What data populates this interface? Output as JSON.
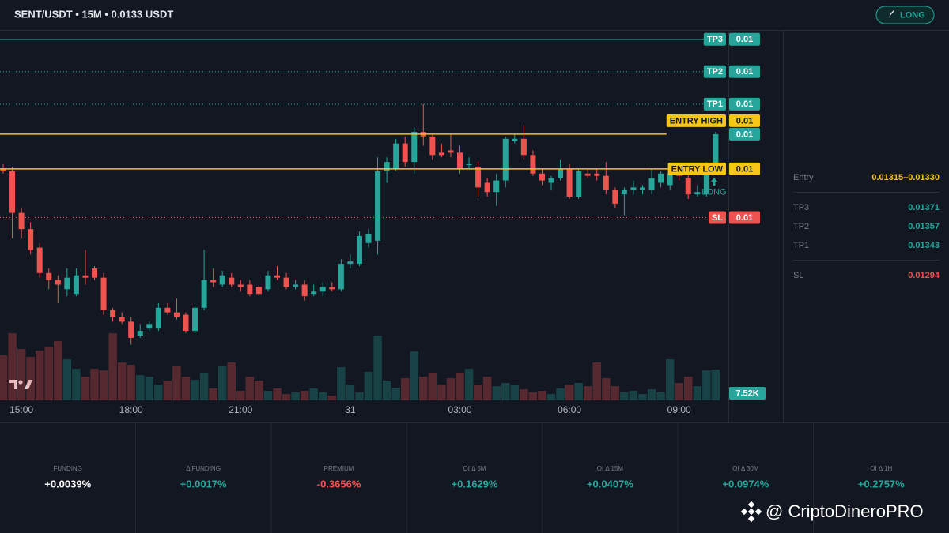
{
  "header": {
    "title": "SENT/USDT • 15M • 0.0133 USDT",
    "button": "LONG"
  },
  "chart_data": {
    "type": "candlestick",
    "categories": [
      null,
      null,
      "15:00",
      null,
      null,
      null,
      null,
      null,
      null,
      null,
      null,
      null,
      null,
      null,
      "18:00",
      null,
      null,
      null,
      null,
      null,
      null,
      null,
      null,
      null,
      null,
      null,
      "21:00",
      null,
      null,
      null,
      null,
      null,
      null,
      null,
      null,
      null,
      null,
      null,
      "31",
      null,
      null,
      null,
      null,
      null,
      null,
      null,
      null,
      null,
      null,
      null,
      "03:00",
      null,
      null,
      null,
      null,
      null,
      null,
      null,
      null,
      null,
      null,
      null,
      "06:00",
      null,
      null,
      null,
      null,
      null,
      null,
      null,
      null,
      null,
      null,
      null,
      "09:00",
      null,
      null,
      null,
      null
    ],
    "open": [
      0.01315,
      0.01314,
      0.01296,
      0.01289,
      0.01281,
      0.0127,
      0.01267,
      0.01263,
      0.01261,
      0.01269,
      0.01272,
      0.01268,
      0.01254,
      0.01251,
      0.01249,
      0.01243,
      0.01246,
      0.01246,
      0.01255,
      0.01253,
      0.01252,
      0.01245,
      0.01255,
      0.01267,
      0.01265,
      0.01268,
      0.01265,
      0.01265,
      0.01264,
      0.01263,
      0.01269,
      0.01268,
      0.01264,
      0.01265,
      0.01261,
      0.01262,
      0.01264,
      0.01263,
      0.01274,
      0.01274,
      0.01283,
      0.01284,
      0.01314,
      0.01315,
      0.01326,
      0.01318,
      0.01331,
      0.01329,
      0.01322,
      0.01323,
      0.01322,
      0.01317,
      0.01316,
      0.01309,
      0.01305,
      0.0131,
      0.01327,
      0.01328,
      0.01321,
      0.01313,
      0.01309,
      0.01311,
      0.01315,
      0.01303,
      0.01313,
      0.01313,
      0.01312,
      0.01306,
      0.01304,
      0.01306,
      0.01306,
      0.01306,
      0.01309,
      0.01308,
      0.01313,
      0.01311,
      0.01304,
      0.01304,
      0.01316
    ],
    "high": [
      0.01317,
      0.01316,
      0.01298,
      0.01292,
      0.01283,
      0.01272,
      0.01269,
      0.01272,
      0.01272,
      0.0128,
      0.01273,
      0.0127,
      0.01255,
      0.01253,
      0.01251,
      0.01248,
      0.01249,
      0.01257,
      0.01257,
      0.01259,
      0.01253,
      0.01256,
      0.0128,
      0.01272,
      0.01271,
      0.0127,
      0.01267,
      0.01267,
      0.01265,
      0.01271,
      0.01273,
      0.0127,
      0.01267,
      0.01267,
      0.01265,
      0.01266,
      0.01266,
      0.01276,
      0.01278,
      0.01288,
      0.01289,
      0.0132,
      0.0132,
      0.01328,
      0.01329,
      0.01333,
      0.01343,
      0.0133,
      0.01326,
      0.0133,
      0.01325,
      0.0132,
      0.01318,
      0.01311,
      0.01313,
      0.01329,
      0.0133,
      0.01334,
      0.01323,
      0.01315,
      0.01312,
      0.01319,
      0.01317,
      0.01315,
      0.01315,
      0.01315,
      0.01318,
      0.01307,
      0.01307,
      0.0131,
      0.01308,
      0.01315,
      0.01314,
      0.01314,
      0.01315,
      0.01313,
      0.01308,
      0.01318,
      0.01331
    ],
    "low": [
      0.01313,
      0.01285,
      0.01285,
      0.01278,
      0.01268,
      0.01263,
      0.01257,
      0.0126,
      0.0126,
      0.01265,
      0.01267,
      0.01252,
      0.01249,
      0.01248,
      0.01239,
      0.01242,
      0.01245,
      0.01245,
      0.01252,
      0.0125,
      0.01244,
      0.01244,
      0.01254,
      0.01264,
      0.01264,
      0.01264,
      0.01262,
      0.0126,
      0.0126,
      0.01262,
      0.01267,
      0.01263,
      0.01263,
      0.01258,
      0.0126,
      0.0126,
      0.01262,
      0.01262,
      0.01272,
      0.01273,
      0.01281,
      0.01278,
      0.01309,
      0.01314,
      0.01316,
      0.01313,
      0.01325,
      0.01319,
      0.0132,
      0.0132,
      0.01313,
      0.01315,
      0.01303,
      0.01303,
      0.01299,
      0.01307,
      0.01326,
      0.01319,
      0.01312,
      0.01308,
      0.01306,
      0.0131,
      0.01302,
      0.01302,
      0.01311,
      0.0131,
      0.01304,
      0.01298,
      0.01295,
      0.01304,
      0.01304,
      0.01304,
      0.01307,
      0.01306,
      0.0131,
      0.01302,
      0.01303,
      0.01303,
      0.01315
    ],
    "close": [
      0.01314,
      0.01296,
      0.01289,
      0.0128,
      0.0127,
      0.01267,
      0.01265,
      0.01268,
      0.01269,
      0.01268,
      0.01268,
      0.01254,
      0.01251,
      0.01249,
      0.01242,
      0.01245,
      0.01248,
      0.01255,
      0.01253,
      0.01251,
      0.01245,
      0.01255,
      0.01267,
      0.01266,
      0.01269,
      0.01265,
      0.01264,
      0.01261,
      0.01261,
      0.01269,
      0.01268,
      0.01264,
      0.01265,
      0.0126,
      0.01262,
      0.01264,
      0.01263,
      0.01274,
      0.01275,
      0.01286,
      0.01287,
      0.01314,
      0.01318,
      0.01326,
      0.01318,
      0.01331,
      0.01329,
      0.01321,
      0.01321,
      0.01322,
      0.01315,
      0.01317,
      0.01307,
      0.01305,
      0.0131,
      0.01328,
      0.01328,
      0.01321,
      0.01313,
      0.0131,
      0.01311,
      0.01315,
      0.01303,
      0.01314,
      0.01312,
      0.01312,
      0.01306,
      0.013,
      0.01306,
      0.01307,
      0.01307,
      0.01311,
      0.01313,
      0.01313,
      0.01312,
      0.01304,
      0.01305,
      0.01316,
      0.0133
    ],
    "up_color": "#26a69a",
    "down_color": "#ef5350",
    "ylim": [
      0.01214,
      0.01375
    ],
    "volume": {
      "values": [
        11000,
        16400,
        12550,
        10620,
        12160,
        13120,
        14480,
        10040,
        7720,
        5790,
        7720,
        7330,
        16400,
        9260,
        8690,
        6180,
        5790,
        3860,
        4830,
        8300,
        5790,
        5020,
        6760,
        2900,
        8300,
        9260,
        2320,
        5790,
        4830,
        2320,
        2900,
        1540,
        1930,
        2320,
        2900,
        1930,
        1160,
        8110,
        3860,
        1930,
        6950,
        15830,
        4830,
        3090,
        5400,
        11970,
        5790,
        6760,
        3860,
        5400,
        6760,
        7720,
        3860,
        5790,
        3470,
        4250,
        3860,
        2700,
        1930,
        2320,
        1540,
        2900,
        3860,
        4250,
        3470,
        9260,
        5400,
        3470,
        1930,
        2320,
        1540,
        2700,
        1930,
        10040,
        4250,
        5790,
        3470,
        7330,
        7520
      ],
      "last_label": "7.52K"
    },
    "volume_ylim": [
      0,
      40000
    ],
    "last_price": 0.0133,
    "last_price_label": "0.01",
    "levels": [
      {
        "name": "TP3",
        "value": 0.01371,
        "label": "0.01",
        "color": "#26a69a",
        "text_color": "#ffffff",
        "style": "solid"
      },
      {
        "name": "TP2",
        "value": 0.01357,
        "label": "0.01",
        "color": "#26a69a",
        "text_color": "#ffffff",
        "style": "dotted"
      },
      {
        "name": "TP1",
        "value": 0.01343,
        "label": "0.01",
        "color": "#26a69a",
        "text_color": "#ffffff",
        "style": "dotted"
      },
      {
        "name": "ENTRY HIGH",
        "value": 0.0133,
        "label": "0.01",
        "color": "#f5c518",
        "text_color": "#131722",
        "style": "solid"
      },
      {
        "name": "ENTRY LOW",
        "value": 0.01315,
        "label": "0.01",
        "color": "#f5c518",
        "text_color": "#131722",
        "style": "solid"
      },
      {
        "name": "SL",
        "value": 0.01294,
        "label": "0.01",
        "color": "#ef5350",
        "text_color": "#ffffff",
        "style": "dotted"
      }
    ],
    "annotation": "LONG"
  },
  "side_panel": {
    "rows": [
      {
        "label": "Entry",
        "value": "0.01315–0.01330",
        "color": "#f5c518"
      },
      {
        "label": "TP3",
        "value": "0.01371",
        "color": "#26a69a"
      },
      {
        "label": "TP2",
        "value": "0.01357",
        "color": "#26a69a"
      },
      {
        "label": "TP1",
        "value": "0.01343",
        "color": "#26a69a"
      },
      {
        "label": "SL",
        "value": "0.01294",
        "color": "#ef5350"
      }
    ]
  },
  "metrics": [
    {
      "label": "FUNDING",
      "value": "+0.0039%",
      "color": "#ffffff"
    },
    {
      "label": "Δ FUNDING",
      "value": "+0.0017%",
      "color": "#26a69a"
    },
    {
      "label": "PREMIUM",
      "value": "-0.3656%",
      "color": "#ef5350"
    },
    {
      "label": "OI Δ 5M",
      "value": "+0.1629%",
      "color": "#26a69a"
    },
    {
      "label": "OI Δ 15M",
      "value": "+0.0407%",
      "color": "#26a69a"
    },
    {
      "label": "OI Δ 30M",
      "value": "+0.0974%",
      "color": "#26a69a"
    },
    {
      "label": "OI Δ 1H",
      "value": "+0.2757%",
      "color": "#26a69a"
    }
  ],
  "watermark": "@ CriptoDineroPRO"
}
